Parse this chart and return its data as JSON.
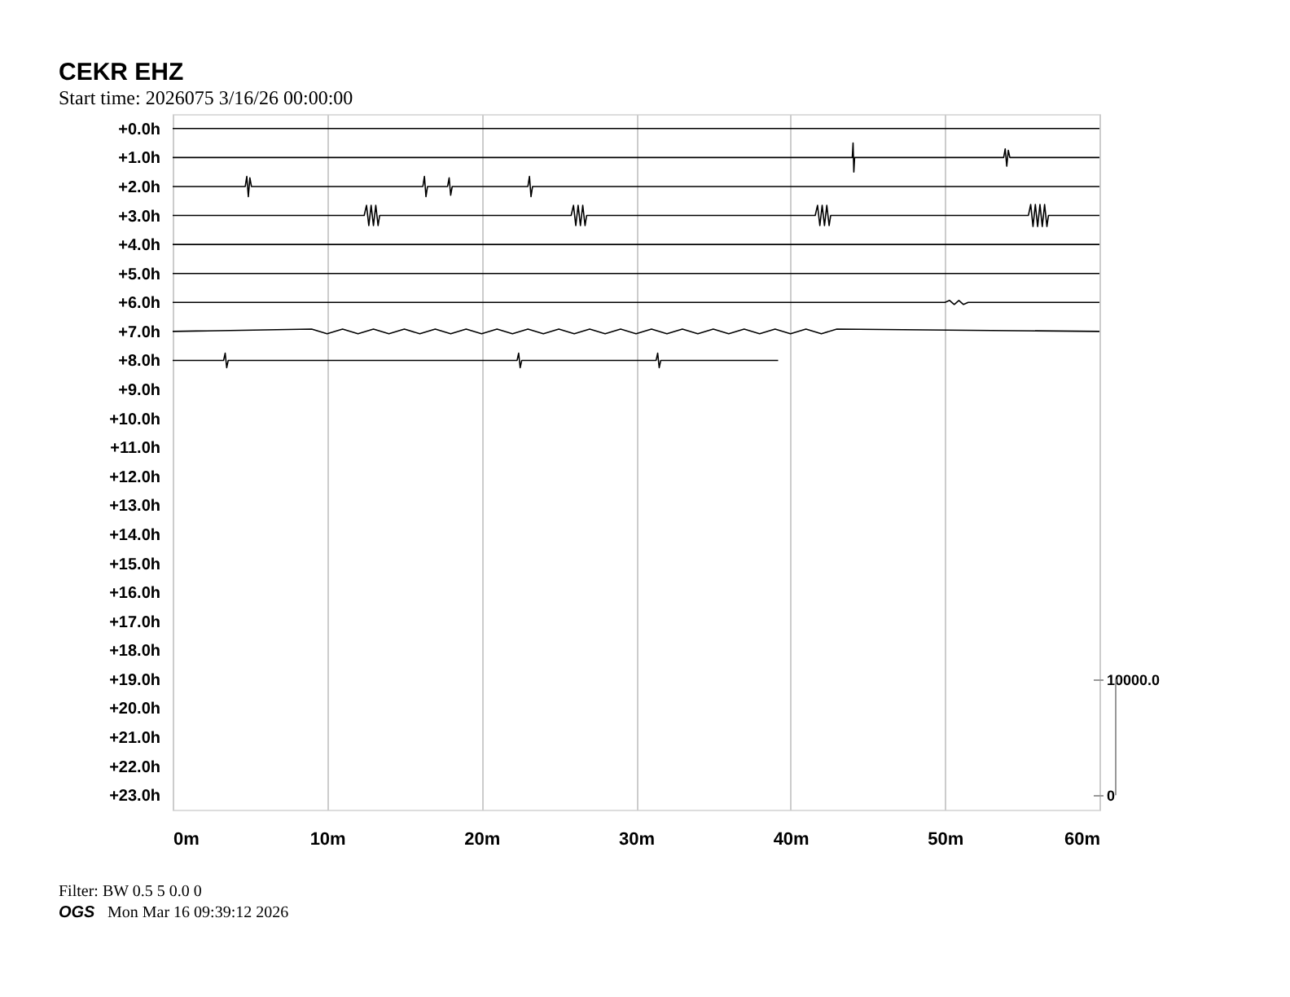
{
  "chart_data": {
    "type": "line",
    "title": "CEKR EHZ",
    "subtitle": "Start time: 2026075  3/16/26 00:00:00",
    "xlim": [
      0,
      60
    ],
    "xticks": [
      {
        "value": 0,
        "label": "0m"
      },
      {
        "value": 10,
        "label": "10m"
      },
      {
        "value": 20,
        "label": "20m"
      },
      {
        "value": 30,
        "label": "30m"
      },
      {
        "value": 40,
        "label": "40m"
      },
      {
        "value": 50,
        "label": "50m"
      },
      {
        "value": 60,
        "label": "60m"
      }
    ],
    "ylim": [
      23.5,
      -0.5
    ],
    "yticks": [
      {
        "value": 0,
        "label": "+0.0h"
      },
      {
        "value": 1,
        "label": "+1.0h"
      },
      {
        "value": 2,
        "label": "+2.0h"
      },
      {
        "value": 3,
        "label": "+3.0h"
      },
      {
        "value": 4,
        "label": "+4.0h"
      },
      {
        "value": 5,
        "label": "+5.0h"
      },
      {
        "value": 6,
        "label": "+6.0h"
      },
      {
        "value": 7,
        "label": "+7.0h"
      },
      {
        "value": 8,
        "label": "+8.0h"
      },
      {
        "value": 9,
        "label": "+9.0h"
      },
      {
        "value": 10,
        "label": "+10.0h"
      },
      {
        "value": 11,
        "label": "+11.0h"
      },
      {
        "value": 12,
        "label": "+12.0h"
      },
      {
        "value": 13,
        "label": "+13.0h"
      },
      {
        "value": 14,
        "label": "+14.0h"
      },
      {
        "value": 15,
        "label": "+15.0h"
      },
      {
        "value": 16,
        "label": "+16.0h"
      },
      {
        "value": 17,
        "label": "+17.0h"
      },
      {
        "value": 18,
        "label": "+18.0h"
      },
      {
        "value": 19,
        "label": "+19.0h"
      },
      {
        "value": 20,
        "label": "+20.0h"
      },
      {
        "value": 21,
        "label": "+21.0h"
      },
      {
        "value": 22,
        "label": "+22.0h"
      },
      {
        "value": 23,
        "label": "+23.0h"
      }
    ],
    "y2lim": [
      -1250,
      58750
    ],
    "y2ticks": [
      {
        "value": 10000,
        "label": "10000.0"
      },
      0
    ],
    "grid": "x",
    "legend": false,
    "marker": "none",
    "line_style": "solid",
    "series": [
      {
        "color": "#000000",
        "x": [
          0,
          15,
          30,
          45,
          60
        ],
        "values": [
          0,
          0,
          0,
          0,
          0
        ]
      },
      {
        "color": "#000000",
        "x": [
          0,
          44.0,
          44.05,
          44.1,
          44.15,
          53.8,
          53.9,
          54.0,
          54.1,
          54.2,
          60
        ],
        "values": [
          1,
          1,
          0.5,
          1.5,
          1,
          1,
          0.7,
          1.3,
          0.75,
          1,
          1
        ]
      },
      {
        "color": "#000000",
        "x": [
          0,
          4.7,
          4.8,
          4.9,
          5.0,
          5.1,
          16.2,
          16.3,
          16.4,
          16.5,
          17.8,
          17.9,
          18.0,
          18.1,
          23.0,
          23.1,
          23.2,
          23.3,
          60
        ],
        "values": [
          2,
          2,
          1.65,
          2.35,
          1.7,
          2,
          2,
          1.65,
          2.35,
          2,
          2,
          1.7,
          2.3,
          2,
          2,
          1.65,
          2.35,
          2,
          2
        ]
      },
      {
        "color": "#000000",
        "x": [
          0,
          12.4,
          12.55,
          12.7,
          12.85,
          13.0,
          13.15,
          13.3,
          13.4,
          25.8,
          25.95,
          26.1,
          26.25,
          26.4,
          26.55,
          26.7,
          26.8,
          41.6,
          41.75,
          41.9,
          42.05,
          42.2,
          42.35,
          42.5,
          42.6,
          55.4,
          55.55,
          55.7,
          55.85,
          56.0,
          56.15,
          56.3,
          56.45,
          56.6,
          56.7,
          60
        ],
        "values": [
          3,
          3,
          2.65,
          3.35,
          2.65,
          3.35,
          2.65,
          3.35,
          3,
          3,
          2.65,
          3.35,
          2.65,
          3.35,
          2.65,
          3.35,
          3,
          3,
          2.65,
          3.35,
          2.65,
          3.35,
          2.65,
          3.35,
          3,
          3,
          2.62,
          3.38,
          2.62,
          3.38,
          2.62,
          3.38,
          2.62,
          3.38,
          3,
          3
        ]
      },
      {
        "color": "#000000",
        "x": [
          0,
          15,
          30,
          45,
          60
        ],
        "values": [
          4,
          4,
          4,
          4,
          4
        ]
      },
      {
        "color": "#000000",
        "x": [
          0,
          15,
          30,
          45,
          60
        ],
        "values": [
          5,
          5,
          5,
          5,
          5
        ]
      },
      {
        "color": "#000000",
        "x": [
          0,
          50.0,
          50.3,
          50.6,
          50.9,
          51.2,
          51.5,
          52.0,
          60
        ],
        "values": [
          6,
          6,
          5.93,
          6.07,
          5.93,
          6.07,
          6,
          6,
          6
        ]
      },
      {
        "color": "#000000",
        "x": [
          0,
          9,
          10,
          11,
          12,
          13,
          14,
          15,
          16,
          17,
          18,
          19,
          20,
          21,
          22,
          23,
          24,
          25,
          26,
          27,
          28,
          29,
          30,
          31,
          32,
          33,
          34,
          35,
          36,
          37,
          38,
          39,
          40,
          41,
          42,
          43,
          60
        ],
        "values": [
          7,
          6.92,
          7.08,
          6.92,
          7.08,
          6.92,
          7.08,
          6.92,
          7.08,
          6.92,
          7.08,
          6.92,
          7.08,
          6.92,
          7.08,
          6.92,
          7.08,
          6.92,
          7.08,
          6.92,
          7.08,
          6.92,
          7.08,
          6.92,
          7.08,
          6.92,
          7.08,
          6.92,
          7.08,
          6.92,
          7.08,
          6.92,
          7.08,
          6.92,
          7.08,
          6.92,
          7
        ]
      },
      {
        "color": "#000000",
        "x": [
          0,
          3.3,
          3.4,
          3.5,
          3.6,
          22.3,
          22.4,
          22.5,
          22.6,
          31.3,
          31.4,
          31.5,
          31.6,
          39.2
        ],
        "values": [
          8,
          8,
          7.75,
          8.25,
          8,
          8,
          7.75,
          8.25,
          8,
          8,
          7.75,
          8.25,
          8,
          8
        ]
      }
    ],
    "annotations": [
      "Filter: BW 0.5 5 0.0 0",
      "OGS",
      "Mon Mar 16 09:39:12 2026"
    ]
  }
}
